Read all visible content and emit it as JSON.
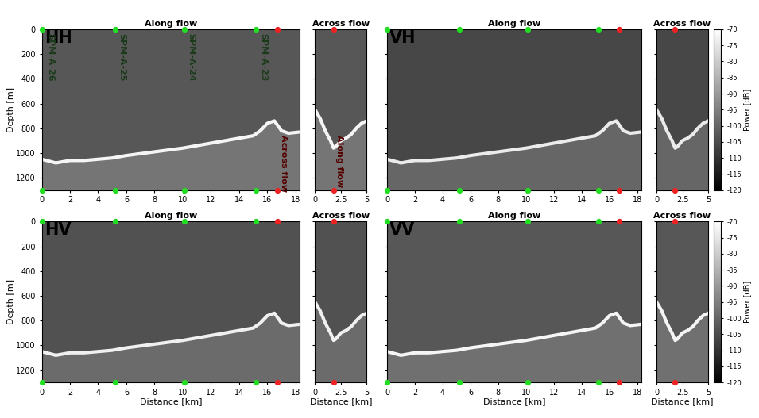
{
  "chart_data": [
    {
      "type": "radargram",
      "title": "Along flow",
      "label": "HH",
      "ylabel": "Depth [m]",
      "xlim": [
        0,
        18.3
      ],
      "xticks": [
        0,
        2,
        4,
        6,
        8,
        10,
        12,
        14,
        16,
        18
      ],
      "ylim": [
        1300,
        0
      ],
      "yticks": [
        0,
        200,
        400,
        600,
        800,
        1000,
        1200
      ],
      "x": [
        0,
        1,
        2,
        3,
        4,
        5,
        6,
        8,
        10,
        12,
        14,
        15,
        15.5,
        16,
        16.5,
        17,
        17.5,
        18.3
      ],
      "bed_depth": [
        1050,
        1080,
        1060,
        1060,
        1050,
        1040,
        1020,
        990,
        960,
        920,
        880,
        860,
        820,
        760,
        740,
        820,
        840,
        830
      ],
      "ice_power": -103,
      "bed_power": -72,
      "below_bed_power": -97,
      "markers": [
        {
          "x": 0,
          "color": "#22dd22"
        },
        {
          "x": 5.2,
          "color": "#22dd22"
        },
        {
          "x": 10.1,
          "color": "#22dd22"
        },
        {
          "x": 15.2,
          "color": "#22dd22"
        },
        {
          "x": 16.7,
          "color": "#ee2222"
        }
      ],
      "annotations": [
        {
          "text": "SPM-A-26",
          "x": 0.3,
          "y": 30,
          "color": "#1a3a1a"
        },
        {
          "text": "SPM-A-25",
          "x": 5.4,
          "y": 30,
          "color": "#1a3a1a"
        },
        {
          "text": "SPM-A-24",
          "x": 10.3,
          "y": 30,
          "color": "#1a3a1a"
        },
        {
          "text": "SPM-A-23",
          "x": 15.4,
          "y": 30,
          "color": "#1a3a1a"
        },
        {
          "text": "Across flow",
          "x": 16.9,
          "y": 850,
          "color": "#550000"
        }
      ]
    },
    {
      "type": "radargram",
      "title": "Across flow",
      "tick_labels": "x",
      "xlim": [
        0,
        5
      ],
      "xticks": [
        0,
        2.5,
        5
      ],
      "ylim": [
        1300,
        0
      ],
      "yticks": [
        0,
        200,
        400,
        600,
        800,
        1000,
        1200
      ],
      "x": [
        0,
        0.5,
        1,
        1.5,
        1.8,
        2,
        2.5,
        3,
        3.5,
        4,
        4.5,
        5
      ],
      "bed_depth": [
        650,
        720,
        820,
        900,
        960,
        950,
        900,
        880,
        850,
        800,
        760,
        740
      ],
      "ice_power": -103,
      "bed_power": -72,
      "below_bed_power": -97,
      "markers": [
        {
          "x": 1.8,
          "color": "#ee2222"
        }
      ],
      "annotations": [
        {
          "text": "Along flow",
          "x": 2.0,
          "y": 850,
          "color": "#550000"
        }
      ]
    },
    {
      "type": "radargram",
      "title": "Along flow",
      "label": "VH",
      "tick_labels": "x",
      "xlim": [
        0,
        18.3
      ],
      "xticks": [
        0,
        2,
        4,
        6,
        8,
        10,
        12,
        14,
        16,
        18
      ],
      "ylim": [
        1300,
        0
      ],
      "yticks": [
        0,
        200,
        400,
        600,
        800,
        1000,
        1200
      ],
      "x": [
        0,
        1,
        2,
        3,
        4,
        5,
        6,
        8,
        10,
        12,
        14,
        15,
        15.5,
        16,
        16.5,
        17,
        17.5,
        18.3
      ],
      "bed_depth": [
        1050,
        1080,
        1060,
        1060,
        1050,
        1040,
        1020,
        990,
        960,
        920,
        880,
        860,
        820,
        760,
        740,
        820,
        840,
        830
      ],
      "ice_power": -106,
      "bed_power": -74,
      "below_bed_power": -100,
      "markers": [
        {
          "x": 0,
          "color": "#22dd22"
        },
        {
          "x": 5.2,
          "color": "#22dd22"
        },
        {
          "x": 10.1,
          "color": "#22dd22"
        },
        {
          "x": 15.2,
          "color": "#22dd22"
        },
        {
          "x": 16.7,
          "color": "#ee2222"
        }
      ]
    },
    {
      "type": "radargram",
      "title": "Across flow",
      "tick_labels": "x",
      "xlim": [
        0,
        5
      ],
      "xticks": [
        0,
        2.5,
        5
      ],
      "ylim": [
        1300,
        0
      ],
      "yticks": [
        0,
        200,
        400,
        600,
        800,
        1000,
        1200
      ],
      "x": [
        0,
        0.5,
        1,
        1.5,
        1.8,
        2,
        2.5,
        3,
        3.5,
        4,
        4.5,
        5
      ],
      "bed_depth": [
        650,
        720,
        820,
        900,
        960,
        950,
        900,
        880,
        850,
        800,
        760,
        740
      ],
      "ice_power": -106,
      "bed_power": -74,
      "below_bed_power": -100,
      "markers": [
        {
          "x": 1.8,
          "color": "#ee2222"
        }
      ],
      "colorbar": {
        "label": "Power [dB]",
        "lim": [
          -120,
          -70
        ],
        "ticks": [
          -70,
          -75,
          -80,
          -85,
          -90,
          -95,
          -100,
          -105,
          -110,
          -115,
          -120
        ]
      }
    },
    {
      "type": "radargram",
      "title": "Along flow",
      "label": "HV",
      "xlabel": "Distance [km]",
      "ylabel": "Depth [m]",
      "xlim": [
        0,
        18.3
      ],
      "xticks": [
        0,
        2,
        4,
        6,
        8,
        10,
        12,
        14,
        16,
        18
      ],
      "ylim": [
        1300,
        0
      ],
      "yticks": [
        0,
        200,
        400,
        600,
        800,
        1000,
        1200
      ],
      "x": [
        0,
        1,
        2,
        3,
        4,
        5,
        6,
        8,
        10,
        12,
        14,
        15,
        15.5,
        16,
        16.5,
        17,
        17.5,
        18.3
      ],
      "bed_depth": [
        1050,
        1080,
        1060,
        1060,
        1050,
        1040,
        1020,
        990,
        960,
        920,
        880,
        860,
        820,
        760,
        740,
        820,
        840,
        830
      ],
      "ice_power": -104,
      "bed_power": -73,
      "below_bed_power": -99,
      "markers": [
        {
          "x": 0,
          "color": "#22dd22"
        },
        {
          "x": 5.2,
          "color": "#22dd22"
        },
        {
          "x": 10.1,
          "color": "#22dd22"
        },
        {
          "x": 15.2,
          "color": "#22dd22"
        },
        {
          "x": 16.7,
          "color": "#ee2222"
        }
      ]
    },
    {
      "type": "radargram",
      "title": "Across flow",
      "xlabel": "Distance [km]",
      "tick_labels": "x",
      "xlim": [
        0,
        5
      ],
      "xticks": [
        0,
        2.5,
        5
      ],
      "ylim": [
        1300,
        0
      ],
      "yticks": [
        0,
        200,
        400,
        600,
        800,
        1000,
        1200
      ],
      "x": [
        0,
        0.5,
        1,
        1.5,
        1.8,
        2,
        2.5,
        3,
        3.5,
        4,
        4.5,
        5
      ],
      "bed_depth": [
        650,
        720,
        820,
        900,
        960,
        950,
        900,
        880,
        850,
        800,
        760,
        740
      ],
      "ice_power": -104,
      "bed_power": -73,
      "below_bed_power": -99,
      "markers": [
        {
          "x": 1.8,
          "color": "#ee2222"
        }
      ]
    },
    {
      "type": "radargram",
      "title": "Along flow",
      "label": "VV",
      "xlabel": "Distance [km]",
      "tick_labels": "x",
      "xlim": [
        0,
        18.3
      ],
      "xticks": [
        0,
        2,
        4,
        6,
        8,
        10,
        12,
        14,
        16,
        18
      ],
      "ylim": [
        1300,
        0
      ],
      "yticks": [
        0,
        200,
        400,
        600,
        800,
        1000,
        1200
      ],
      "x": [
        0,
        1,
        2,
        3,
        4,
        5,
        6,
        8,
        10,
        12,
        14,
        15,
        15.5,
        16,
        16.5,
        17,
        17.5,
        18.3
      ],
      "bed_depth": [
        1050,
        1080,
        1060,
        1060,
        1050,
        1040,
        1020,
        990,
        960,
        920,
        880,
        860,
        820,
        760,
        740,
        820,
        840,
        830
      ],
      "ice_power": -103,
      "bed_power": -72,
      "below_bed_power": -98,
      "markers": [
        {
          "x": 0,
          "color": "#22dd22"
        },
        {
          "x": 5.2,
          "color": "#22dd22"
        },
        {
          "x": 10.1,
          "color": "#22dd22"
        },
        {
          "x": 15.2,
          "color": "#22dd22"
        },
        {
          "x": 16.7,
          "color": "#ee2222"
        }
      ]
    },
    {
      "type": "radargram",
      "title": "Across flow",
      "xlabel": "Distance [km]",
      "tick_labels": "x",
      "xlim": [
        0,
        5
      ],
      "xticks": [
        0,
        2.5,
        5
      ],
      "ylim": [
        1300,
        0
      ],
      "yticks": [
        0,
        200,
        400,
        600,
        800,
        1000,
        1200
      ],
      "x": [
        0,
        0.5,
        1,
        1.5,
        1.8,
        2,
        2.5,
        3,
        3.5,
        4,
        4.5,
        5
      ],
      "bed_depth": [
        650,
        720,
        820,
        900,
        960,
        950,
        900,
        880,
        850,
        800,
        760,
        740
      ],
      "ice_power": -103,
      "bed_power": -72,
      "below_bed_power": -98,
      "markers": [
        {
          "x": 1.8,
          "color": "#ee2222"
        }
      ],
      "colorbar": {
        "label": "Power [dB]",
        "lim": [
          -120,
          -70
        ],
        "ticks": [
          -70,
          -75,
          -80,
          -85,
          -90,
          -95,
          -100,
          -105,
          -110,
          -115,
          -120
        ]
      }
    }
  ]
}
